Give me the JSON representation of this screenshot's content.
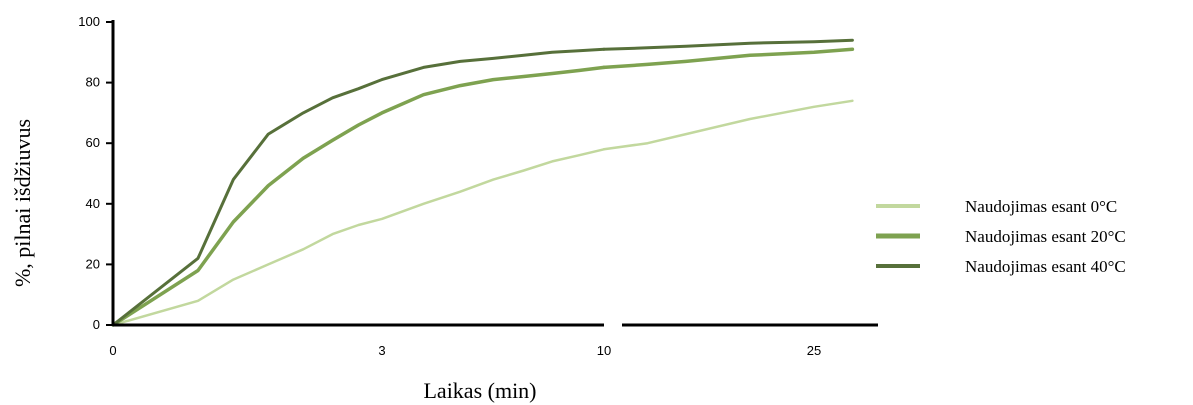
{
  "chart_data": {
    "type": "line",
    "xlabel": "Laikas (min)",
    "ylabel": "%, pilnai išdžiuvus",
    "ylim": [
      0,
      100
    ],
    "yticks": [
      0,
      20,
      40,
      60,
      80,
      100
    ],
    "x_segments": [
      {
        "range": [
          0,
          10
        ],
        "tick_labels": [
          {
            "value": 0,
            "label": "0"
          },
          {
            "value": 3,
            "label": "3"
          },
          {
            "value": 10,
            "label": "10"
          }
        ]
      },
      {
        "range": [
          10,
          30
        ],
        "tick_labels": [
          {
            "value": 25,
            "label": "25"
          }
        ]
      }
    ],
    "axis_break": true,
    "grid": false,
    "legend_position": "right",
    "series": [
      {
        "name": "Naudojimas esant 0°C",
        "color": "#c2d89e",
        "points": [
          [
            0,
            0
          ],
          [
            0.3,
            8
          ],
          [
            0.6,
            15
          ],
          [
            1,
            20
          ],
          [
            1.5,
            25
          ],
          [
            2,
            30
          ],
          [
            2.5,
            33
          ],
          [
            3,
            35
          ],
          [
            4,
            40
          ],
          [
            5,
            44
          ],
          [
            6,
            48
          ],
          [
            7,
            51
          ],
          [
            8,
            54
          ],
          [
            9,
            56
          ],
          [
            10,
            58
          ],
          [
            12,
            60
          ],
          [
            15,
            63
          ],
          [
            20,
            68
          ],
          [
            25,
            72
          ],
          [
            28,
            74
          ]
        ]
      },
      {
        "name": "Naudojimas esant 20°C",
        "color": "#7ea250",
        "points": [
          [
            0,
            0
          ],
          [
            0.3,
            18
          ],
          [
            0.6,
            34
          ],
          [
            1,
            46
          ],
          [
            1.5,
            55
          ],
          [
            2,
            61
          ],
          [
            2.5,
            66
          ],
          [
            3,
            70
          ],
          [
            4,
            76
          ],
          [
            5,
            79
          ],
          [
            6,
            81
          ],
          [
            7,
            82
          ],
          [
            8,
            83
          ],
          [
            9,
            84
          ],
          [
            10,
            85
          ],
          [
            12,
            86
          ],
          [
            15,
            87
          ],
          [
            20,
            89
          ],
          [
            25,
            90
          ],
          [
            28,
            91
          ]
        ]
      },
      {
        "name": "Naudojimas esant 40°C",
        "color": "#57703a",
        "points": [
          [
            0,
            0
          ],
          [
            0.3,
            22
          ],
          [
            0.6,
            48
          ],
          [
            1,
            63
          ],
          [
            1.5,
            70
          ],
          [
            2,
            75
          ],
          [
            2.5,
            78
          ],
          [
            3,
            81
          ],
          [
            4,
            85
          ],
          [
            5,
            87
          ],
          [
            6,
            88
          ],
          [
            7,
            89
          ],
          [
            8,
            90
          ],
          [
            9,
            90.5
          ],
          [
            10,
            91
          ],
          [
            12,
            91.5
          ],
          [
            15,
            92
          ],
          [
            20,
            93
          ],
          [
            25,
            93.5
          ],
          [
            28,
            94
          ]
        ]
      }
    ]
  }
}
